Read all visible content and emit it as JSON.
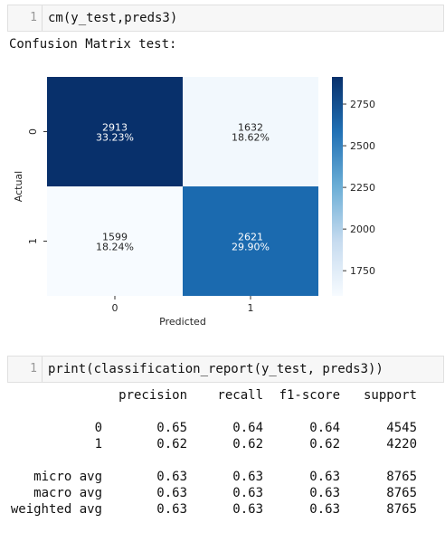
{
  "cells": [
    {
      "line_number": "1",
      "code": "cm(y_test,preds3)"
    },
    {
      "line_number": "1",
      "code": "print(classification_report(y_test, preds3))"
    }
  ],
  "output_title": "Confusion Matrix test:",
  "chart_data": {
    "type": "heatmap",
    "title": "",
    "xlabel": "Predicted",
    "ylabel": "Actual",
    "x_categories": [
      "0",
      "1"
    ],
    "y_categories": [
      "0",
      "1"
    ],
    "values": [
      [
        2913,
        1632
      ],
      [
        1599,
        2621
      ]
    ],
    "percent_labels": [
      [
        "33.23%",
        "18.62%"
      ],
      [
        "18.24%",
        "29.90%"
      ]
    ],
    "cell_labels": [
      [
        "2913",
        "1632"
      ],
      [
        "1599",
        "2621"
      ]
    ],
    "colormap": "Blues",
    "colorbar": {
      "ticks": [
        "2750",
        "2500",
        "2250",
        "2000",
        "1750"
      ],
      "tick_values": [
        2750,
        2500,
        2250,
        2000,
        1750
      ],
      "range": [
        1599,
        2913
      ]
    },
    "colors": {
      "dark": "#08306b",
      "mid": "#2a76b9",
      "light": "#f7fbff"
    }
  },
  "report": {
    "headers": [
      "precision",
      "recall",
      "f1-score",
      "support"
    ],
    "rows": [
      {
        "label": "0",
        "values": [
          "0.65",
          "0.64",
          "0.64",
          "4545"
        ]
      },
      {
        "label": "1",
        "values": [
          "0.62",
          "0.62",
          "0.62",
          "4220"
        ]
      }
    ],
    "averages": [
      {
        "label": "micro avg",
        "values": [
          "0.63",
          "0.63",
          "0.63",
          "8765"
        ]
      },
      {
        "label": "macro avg",
        "values": [
          "0.63",
          "0.63",
          "0.63",
          "8765"
        ]
      },
      {
        "label": "weighted avg",
        "values": [
          "0.63",
          "0.63",
          "0.63",
          "8765"
        ]
      }
    ]
  }
}
